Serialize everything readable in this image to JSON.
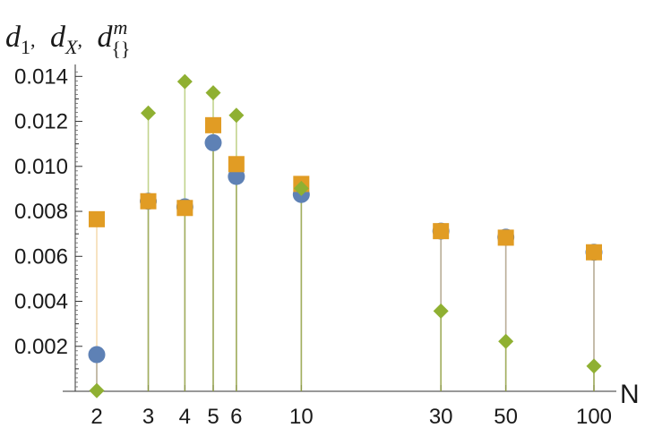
{
  "chart_data": {
    "type": "scatter",
    "title": "",
    "ylabel_parts": {
      "d1_base": "d",
      "d1_sub": "1",
      "dx_base": "d",
      "dx_sub": "X",
      "dm_base": "d",
      "dm_sup": "m",
      "dm_sub": "{}",
      "sep": ","
    },
    "xlabel": "N",
    "x": [
      2,
      3,
      4,
      5,
      6,
      10,
      30,
      50,
      100
    ],
    "x_tick_labels": [
      "2",
      "3",
      "4",
      "5",
      "6",
      "10",
      "30",
      "50",
      "100"
    ],
    "x_scale": "log",
    "ylim": [
      0,
      0.0145
    ],
    "y_ticks": [
      0.002,
      0.004,
      0.006,
      0.008,
      0.01,
      0.012,
      0.014
    ],
    "y_tick_labels": [
      "0.002",
      "0.004",
      "0.006",
      "0.008",
      "0.010",
      "0.012",
      "0.014"
    ],
    "grid": false,
    "series": [
      {
        "marker": "circle",
        "color": "#5e81b5",
        "values": [
          0.00163,
          0.00845,
          0.0082,
          0.01105,
          0.00955,
          0.00875,
          0.00712,
          0.00685,
          0.00618
        ]
      },
      {
        "marker": "square",
        "color": "#e19c24",
        "values": [
          0.00765,
          0.00845,
          0.00815,
          0.01183,
          0.0101,
          0.00922,
          0.00712,
          0.00683,
          0.00618
        ]
      },
      {
        "marker": "diamond",
        "color": "#8fb032",
        "values": [
          3e-05,
          0.01237,
          0.01377,
          0.01327,
          0.01227,
          0.00902,
          0.00357,
          0.00222,
          0.00112
        ]
      }
    ]
  }
}
